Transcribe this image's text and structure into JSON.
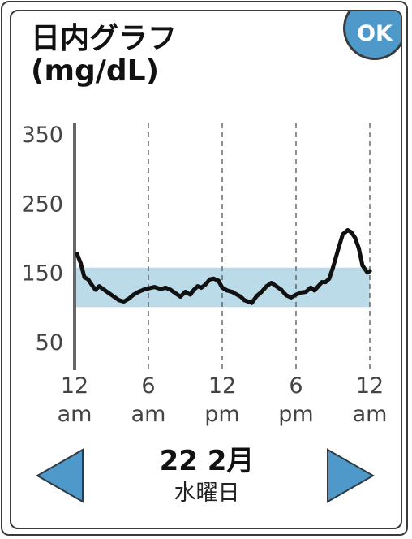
{
  "header": {
    "title_line1": "日内グラフ",
    "title_line2": "(mg/dL)",
    "ok_label": "OK"
  },
  "chart_data": {
    "type": "line",
    "title": "日内グラフ (mg/dL)",
    "ylabel": "mg/dL",
    "ylim": [
      50,
      350
    ],
    "y_ticks": [
      "350",
      "250",
      "150",
      "50"
    ],
    "x_ticks": [
      {
        "hour": 0,
        "line1": "12",
        "line2": "am"
      },
      {
        "hour": 6,
        "line1": "6",
        "line2": "am"
      },
      {
        "hour": 12,
        "line1": "12",
        "line2": "pm"
      },
      {
        "hour": 18,
        "line1": "6",
        "line2": "pm"
      },
      {
        "hour": 24,
        "line1": "12",
        "line2": "am"
      }
    ],
    "xlim": [
      0,
      24
    ],
    "grid": "vertical dashed lines at 6am, 12pm, 6pm, 12am",
    "target_range": [
      100,
      157
    ],
    "colors": {
      "line": "#111111",
      "target_band": "#bcdbe8",
      "axis": "#666666",
      "accent": "#4e99ca"
    },
    "series": [
      {
        "x": [
          0.2,
          0.5,
          0.8,
          1.1,
          1.4,
          1.7,
          2.0,
          2.4,
          2.8,
          3.2,
          3.6,
          4.0,
          4.4,
          4.8,
          5.2,
          5.6,
          6.0,
          6.5,
          7.0,
          7.4,
          7.8,
          8.2,
          8.6,
          9.0,
          9.4,
          9.7,
          10.0,
          10.3,
          10.6,
          11.0,
          11.3,
          11.7,
          12.0,
          12.4,
          12.8,
          13.2,
          13.5,
          13.8,
          14.1,
          14.4,
          14.8,
          15.2,
          15.6,
          16.0,
          16.4,
          16.8,
          17.2,
          17.6,
          18.0,
          18.4,
          18.8,
          19.2,
          19.5,
          19.8,
          20.1,
          20.4,
          20.7,
          21.0,
          21.4,
          21.8,
          22.2,
          22.5,
          22.8,
          23.1,
          23.4,
          23.8,
          24.0
        ],
        "y": [
          177,
          163,
          143,
          140,
          132,
          125,
          130,
          125,
          120,
          115,
          110,
          108,
          112,
          118,
          122,
          125,
          127,
          129,
          126,
          128,
          125,
          120,
          115,
          122,
          118,
          125,
          130,
          128,
          132,
          140,
          141,
          138,
          128,
          124,
          122,
          118,
          115,
          110,
          108,
          106,
          116,
          122,
          130,
          135,
          130,
          125,
          117,
          114,
          118,
          121,
          122,
          128,
          124,
          130,
          136,
          136,
          141,
          157,
          182,
          205,
          211,
          208,
          200,
          185,
          160,
          150,
          152
        ]
      }
    ]
  },
  "footer": {
    "date_main": "22 2月",
    "weekday": "水曜日",
    "prev_icon": "left-arrow-icon",
    "next_icon": "right-arrow-icon"
  }
}
